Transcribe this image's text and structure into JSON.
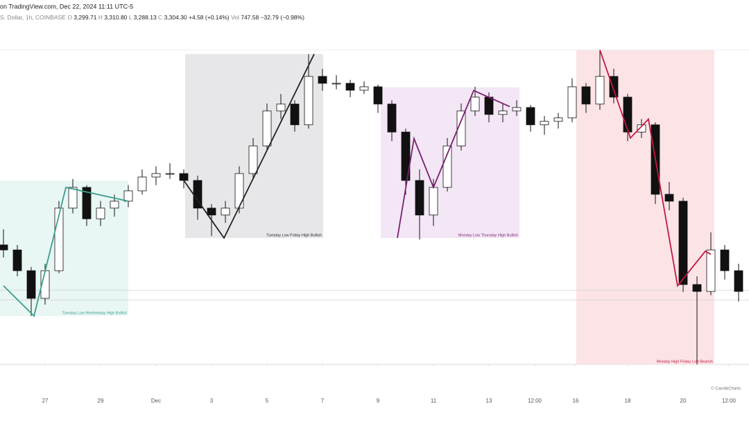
{
  "chart_data": {
    "type": "candlestick",
    "title": "on TradingView.com, Dec 22, 2024 11:11 UTC-5",
    "symbol": "S. Dollar, 1h, COINBASE",
    "ohlc_labels": [
      "O",
      "H",
      "L",
      "C"
    ],
    "ohlc_values": [
      "3,299.71",
      "3,310.80",
      "3,288.13",
      "3,304.30"
    ],
    "change": "+4.58 (+0.14%)",
    "volume_label": "Vol",
    "volume_value": "747.58",
    "volume_change": "−32.79 (−0.98%)",
    "watermark": "© CandleCharts",
    "ylim": [
      3100,
      4100
    ],
    "xlim": [
      -0.25,
      53.5
    ],
    "xticks": [
      {
        "value": 3,
        "label": "27"
      },
      {
        "value": 7,
        "label": "29"
      },
      {
        "value": 11,
        "label": "Dec"
      },
      {
        "value": 15,
        "label": "3"
      },
      {
        "value": 19,
        "label": "5"
      },
      {
        "value": 23,
        "label": "7"
      },
      {
        "value": 27,
        "label": "9"
      },
      {
        "value": 31,
        "label": "11"
      },
      {
        "value": 35,
        "label": "13"
      },
      {
        "value": 38.3,
        "label": "12:00"
      },
      {
        "value": 41.25,
        "label": "16"
      },
      {
        "value": 45,
        "label": "18"
      },
      {
        "value": 49,
        "label": "20"
      },
      {
        "value": 52.3,
        "label": "12:00"
      }
    ],
    "price_lines": [
      3336,
      3305
    ],
    "up_color": "#ffffff",
    "down_color": "#111111",
    "candles": [
      [
        3480,
        3530,
        3440,
        3464
      ],
      [
        3464,
        3480,
        3380,
        3398
      ],
      [
        3398,
        3410,
        3254,
        3310
      ],
      [
        3310,
        3420,
        3290,
        3398
      ],
      [
        3398,
        3620,
        3390,
        3597
      ],
      [
        3597,
        3690,
        3580,
        3663
      ],
      [
        3663,
        3670,
        3540,
        3563
      ],
      [
        3563,
        3620,
        3540,
        3597
      ],
      [
        3597,
        3640,
        3570,
        3619
      ],
      [
        3619,
        3670,
        3600,
        3652
      ],
      [
        3652,
        3720,
        3640,
        3696
      ],
      [
        3696,
        3730,
        3670,
        3707
      ],
      [
        3707,
        3740,
        3690,
        3707
      ],
      [
        3707,
        3720,
        3660,
        3685
      ],
      [
        3685,
        3700,
        3560,
        3597
      ],
      [
        3597,
        3610,
        3508,
        3575
      ],
      [
        3575,
        3620,
        3550,
        3597
      ],
      [
        3597,
        3730,
        3580,
        3707
      ],
      [
        3707,
        3820,
        3690,
        3795
      ],
      [
        3795,
        3930,
        3780,
        3906
      ],
      [
        3906,
        3960,
        3880,
        3928
      ],
      [
        3928,
        3940,
        3840,
        3862
      ],
      [
        3862,
        4087,
        3850,
        4016
      ],
      [
        4016,
        4040,
        3970,
        3994
      ],
      [
        3994,
        4020,
        3975,
        3994
      ],
      [
        3994,
        4005,
        3950,
        3972
      ],
      [
        3972,
        4000,
        3960,
        3983
      ],
      [
        3983,
        3990,
        3900,
        3928
      ],
      [
        3928,
        3940,
        3810,
        3839
      ],
      [
        3839,
        3850,
        3640,
        3685
      ],
      [
        3685,
        3720,
        3497,
        3575
      ],
      [
        3575,
        3690,
        3540,
        3663
      ],
      [
        3663,
        3820,
        3650,
        3795
      ],
      [
        3795,
        3930,
        3780,
        3906
      ],
      [
        3906,
        3983,
        3890,
        3950
      ],
      [
        3950,
        3965,
        3870,
        3895
      ],
      [
        3895,
        3930,
        3870,
        3906
      ],
      [
        3906,
        3940,
        3890,
        3917
      ],
      [
        3917,
        3925,
        3840,
        3862
      ],
      [
        3862,
        3890,
        3830,
        3873
      ],
      [
        3873,
        3900,
        3850,
        3884
      ],
      [
        3884,
        4010,
        3870,
        3983
      ],
      [
        3983,
        3995,
        3900,
        3928
      ],
      [
        3928,
        4100,
        3910,
        4016
      ],
      [
        4016,
        4040,
        3930,
        3950
      ],
      [
        3950,
        3960,
        3810,
        3839
      ],
      [
        3839,
        3880,
        3820,
        3862
      ],
      [
        3862,
        3870,
        3610,
        3641
      ],
      [
        3641,
        3680,
        3590,
        3619
      ],
      [
        3619,
        3630,
        3330,
        3354
      ],
      [
        3354,
        3380,
        3100,
        3332
      ],
      [
        3332,
        3520,
        3320,
        3464
      ],
      [
        3464,
        3480,
        3370,
        3398
      ],
      [
        3398,
        3420,
        3300,
        3332
      ]
    ],
    "zones": [
      {
        "label": "Tuesday Low Wednesday High Bullish",
        "x": [
          -0.25,
          9
        ],
        "y": [
          3254,
          3685
        ],
        "fill": "#e8f6f4",
        "color": "#3a9e8c",
        "path": [
          [
            0,
            3350
          ],
          [
            2.2,
            3254
          ],
          [
            4.5,
            3663
          ],
          [
            9,
            3619
          ]
        ]
      },
      {
        "label": "Tuesday Low Friday High Bullish",
        "x": [
          13.1,
          23.05
        ],
        "y": [
          3502,
          4087
        ],
        "fill": "#e7e7ea",
        "color": "#222222",
        "path": [
          [
            13,
            3685
          ],
          [
            15.9,
            3502
          ],
          [
            22.4,
            4087
          ]
        ]
      },
      {
        "label": "Monday Low Thursday High Bullish",
        "x": [
          27.2,
          37.2
        ],
        "y": [
          3502,
          3981
        ],
        "fill": "#f3e6f5",
        "color": "#7a1f6e",
        "path": [
          [
            28.4,
            3502
          ],
          [
            29.6,
            3818
          ],
          [
            31,
            3663
          ],
          [
            33.9,
            3971
          ],
          [
            36.5,
            3920
          ]
        ]
      },
      {
        "label": "Monday High Friday Low Bearish",
        "x": [
          41.3,
          51.25
        ],
        "y": [
          3100,
          4100
        ],
        "fill": "#fbe3e6",
        "color": "#c2183f",
        "path": [
          [
            43,
            4100
          ],
          [
            45.2,
            3820
          ],
          [
            46.5,
            3880
          ],
          [
            48.6,
            3350
          ],
          [
            50.6,
            3460
          ],
          [
            51,
            3450
          ]
        ]
      }
    ]
  }
}
